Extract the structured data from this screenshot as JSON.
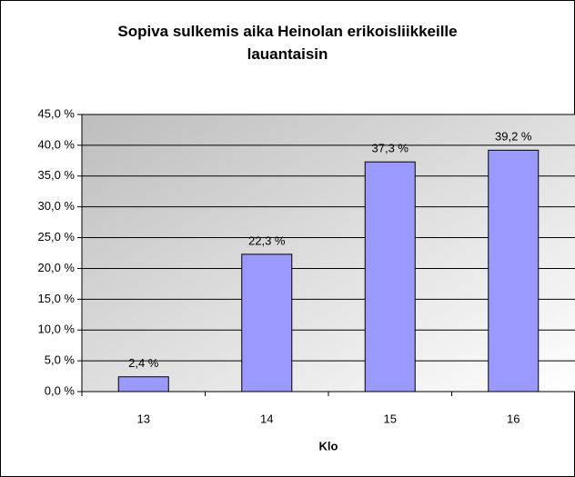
{
  "chart_data": {
    "type": "bar",
    "title": "Sopiva sulkemis aika Heinolan erikoisliikkeille lauantaisin",
    "xlabel": "Klo",
    "categories": [
      "13",
      "14",
      "15",
      "16"
    ],
    "values": [
      2.4,
      22.3,
      37.3,
      39.2
    ],
    "value_labels": [
      "2,4 %",
      "22,3 %",
      "37,3 %",
      "39,2 %"
    ],
    "color": "#9999ff",
    "ylim": [
      0,
      45
    ],
    "yticks": [
      {
        "value": 0,
        "label": "0,0 %"
      },
      {
        "value": 5,
        "label": "5,0 %"
      },
      {
        "value": 10,
        "label": "10,0 %"
      },
      {
        "value": 15,
        "label": "15,0 %"
      },
      {
        "value": 20,
        "label": "20,0 %"
      },
      {
        "value": 25,
        "label": "25,0 %"
      },
      {
        "value": 30,
        "label": "30,0 %"
      },
      {
        "value": 35,
        "label": "35,0 %"
      },
      {
        "value": 40,
        "label": "40,0 %"
      },
      {
        "value": 45,
        "label": "45,0 %"
      }
    ],
    "grid": true
  }
}
